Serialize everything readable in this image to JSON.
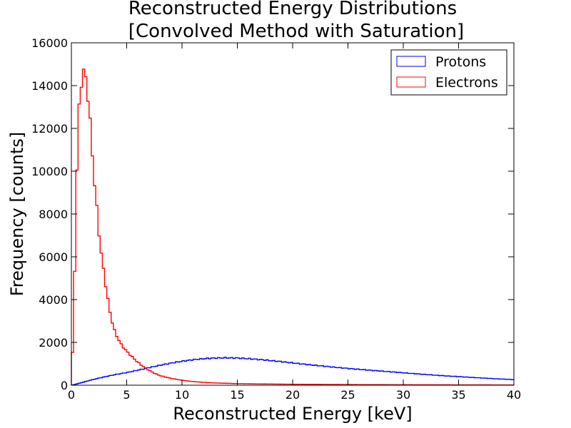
{
  "chart_data": {
    "type": "histogram",
    "title": [
      "Reconstructed Energy Distributions",
      "[Convolved Method with Saturation]"
    ],
    "xlabel": "Reconstructed Energy [keV]",
    "ylabel": "Frequency [counts]",
    "xlim": [
      0,
      40
    ],
    "ylim": [
      0,
      16000
    ],
    "xticks": [
      0,
      5,
      10,
      15,
      20,
      25,
      30,
      35,
      40
    ],
    "yticks": [
      0,
      2000,
      4000,
      6000,
      8000,
      10000,
      12000,
      14000,
      16000
    ],
    "grid": false,
    "legend_position": "top-right",
    "bin_width": 0.2,
    "series": [
      {
        "name": "Protons",
        "color": "#0000ff",
        "points": [
          [
            0,
            0
          ],
          [
            0.5,
            60
          ],
          [
            1,
            130
          ],
          [
            2,
            270
          ],
          [
            3,
            390
          ],
          [
            4,
            500
          ],
          [
            5,
            590
          ],
          [
            6,
            700
          ],
          [
            7,
            820
          ],
          [
            8,
            930
          ],
          [
            9,
            1030
          ],
          [
            10,
            1120
          ],
          [
            11,
            1190
          ],
          [
            12,
            1240
          ],
          [
            13,
            1270
          ],
          [
            14,
            1280
          ],
          [
            15,
            1270
          ],
          [
            16,
            1240
          ],
          [
            17,
            1200
          ],
          [
            18,
            1150
          ],
          [
            19,
            1100
          ],
          [
            20,
            1040
          ],
          [
            22,
            930
          ],
          [
            24,
            830
          ],
          [
            26,
            740
          ],
          [
            28,
            660
          ],
          [
            30,
            580
          ],
          [
            32,
            500
          ],
          [
            34,
            430
          ],
          [
            36,
            370
          ],
          [
            38,
            310
          ],
          [
            40,
            260
          ]
        ]
      },
      {
        "name": "Electrons",
        "color": "#ff0000",
        "points": [
          [
            0,
            200
          ],
          [
            0.2,
            2800
          ],
          [
            0.4,
            8000
          ],
          [
            0.6,
            12100
          ],
          [
            0.8,
            13800
          ],
          [
            1.0,
            14600
          ],
          [
            1.2,
            14600
          ],
          [
            1.4,
            14100
          ],
          [
            1.6,
            12900
          ],
          [
            1.8,
            11600
          ],
          [
            2.0,
            10000
          ],
          [
            2.2,
            8800
          ],
          [
            2.4,
            7700
          ],
          [
            2.6,
            6500
          ],
          [
            2.8,
            5800
          ],
          [
            3.0,
            5000
          ],
          [
            3.2,
            4400
          ],
          [
            3.4,
            3600
          ],
          [
            3.6,
            3200
          ],
          [
            3.8,
            2700
          ],
          [
            4.0,
            2400
          ],
          [
            4.5,
            1900
          ],
          [
            5.0,
            1580
          ],
          [
            5.5,
            1320
          ],
          [
            6.0,
            1070
          ],
          [
            6.5,
            870
          ],
          [
            7.0,
            700
          ],
          [
            7.5,
            560
          ],
          [
            8.0,
            450
          ],
          [
            9.0,
            320
          ],
          [
            10.0,
            230
          ],
          [
            11.0,
            170
          ],
          [
            12.0,
            130
          ],
          [
            13.0,
            105
          ],
          [
            14.0,
            90
          ],
          [
            15.0,
            75
          ],
          [
            17.0,
            60
          ],
          [
            20.0,
            45
          ],
          [
            25.0,
            30
          ],
          [
            30.0,
            22
          ],
          [
            35.0,
            15
          ],
          [
            40.0,
            10
          ]
        ]
      }
    ]
  }
}
